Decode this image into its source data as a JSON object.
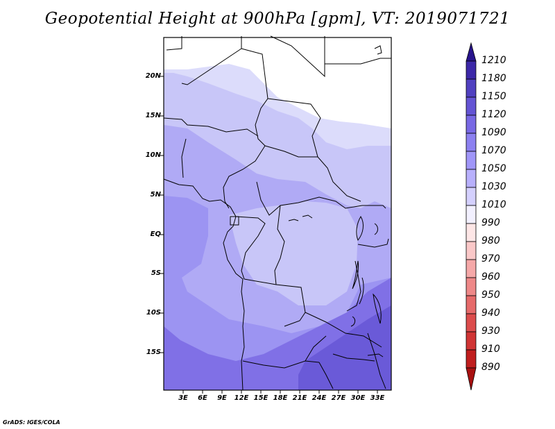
{
  "title": "Geopotential Height at 900hPa [gpm], VT: 2019071721",
  "credit": "GrADS: IGES/COLA",
  "latitude_labels": [
    "20N",
    "15N",
    "10N",
    "5N",
    "EQ",
    "5S",
    "10S",
    "15S"
  ],
  "longitude_labels": [
    "3E",
    "6E",
    "9E",
    "12E",
    "15E",
    "18E",
    "21E",
    "24E",
    "27E",
    "30E",
    "33E"
  ],
  "colorbar": {
    "labels": [
      "1210",
      "1180",
      "1150",
      "1120",
      "1090",
      "1070",
      "1050",
      "1030",
      "1010",
      "990",
      "980",
      "970",
      "960",
      "950",
      "940",
      "930",
      "910",
      "890"
    ],
    "colors": [
      "#28148c",
      "#3c28a8",
      "#5040c0",
      "#6454d4",
      "#7868e4",
      "#8c80f0",
      "#a096f8",
      "#b8b0fc",
      "#d4d0fe",
      "#f2f0ff",
      "#fde6e6",
      "#fac8c8",
      "#f5a8a8",
      "#ee8888",
      "#e66a6a",
      "#dc4c4c",
      "#d03434",
      "#c01e1e",
      "#a81010"
    ]
  },
  "field_colors": {
    "white": "#ffffff",
    "c1010": "#dcdcfb",
    "c1030": "#c8c6f8",
    "c1050": "#b0aaf5",
    "c1070": "#9c94f2",
    "c1090": "#8070e6",
    "c1120": "#6a5ad8"
  }
}
